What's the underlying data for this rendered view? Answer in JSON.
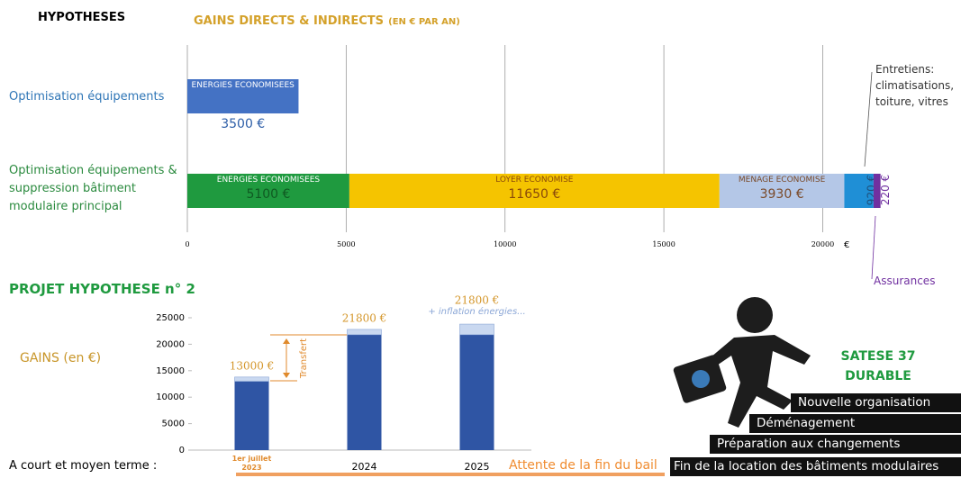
{
  "header": {
    "left": "HYPOTHESES",
    "title": "GAINS DIRECTS & INDIRECTS",
    "unit_note": "(EN € PAR AN)"
  },
  "chart_data": [
    {
      "type": "hbar_stacked",
      "categories": [
        "Optimisation équipements",
        "Optimisation équipements & suppression bâtiment modulaire principal"
      ],
      "series": [
        {
          "name": "ENERGIES ECONOMISEES",
          "colors": [
            "#4472c4",
            "#1f9a3f"
          ],
          "values": [
            3500,
            5100
          ],
          "value_labels": [
            "3500 €",
            "5100 €"
          ]
        },
        {
          "name": "LOYER ECONOMISE",
          "color": "#f5c400",
          "values": [
            null,
            11650
          ],
          "value_labels": [
            null,
            "11650 €"
          ]
        },
        {
          "name": "MENAGE ECONOMISE",
          "color": "#b4c7e7",
          "values": [
            null,
            3930
          ],
          "value_labels": [
            null,
            "3930 €"
          ]
        },
        {
          "name": "Entretiens: climatisations, toiture, vitres",
          "color": "#1f8fd6",
          "values": [
            null,
            920
          ],
          "value_labels": [
            null,
            "920 €"
          ]
        },
        {
          "name": "Assurances",
          "color": "#7030a0",
          "values": [
            null,
            220
          ],
          "value_labels": [
            null,
            "220 €"
          ]
        }
      ],
      "xlim": [
        0,
        22000
      ],
      "xticks": [
        0,
        5000,
        10000,
        15000,
        20000
      ],
      "x_unit": "€",
      "grid": true
    },
    {
      "type": "bar",
      "title": "PROJET HYPOTHESE n° 2",
      "y_label": "GAINS (en €)",
      "categories": [
        "1er juillet 2023",
        "2024",
        "2025"
      ],
      "values": [
        13000,
        21800,
        21800
      ],
      "value_labels": [
        "13000 €",
        "21800 €",
        "21800 €"
      ],
      "color": "#2f55a4",
      "inflation": {
        "label": "+ inflation énergies...",
        "values": [
          800,
          1000,
          2000
        ],
        "color": "#c9d8f0"
      },
      "annotation": "Transfert",
      "ylim": [
        0,
        25000
      ],
      "yticks": [
        0,
        5000,
        10000,
        15000,
        20000,
        25000
      ]
    }
  ],
  "timeline": {
    "label": "A court et moyen terme :",
    "note": "Attente de la fin du bail"
  },
  "badge": {
    "line1": "SATESE 37",
    "line2": "DURABLE"
  },
  "steps": [
    "Nouvelle organisation",
    "Déménagement",
    "Préparation aux changements",
    "Fin de la location des bâtiments modulaires"
  ]
}
